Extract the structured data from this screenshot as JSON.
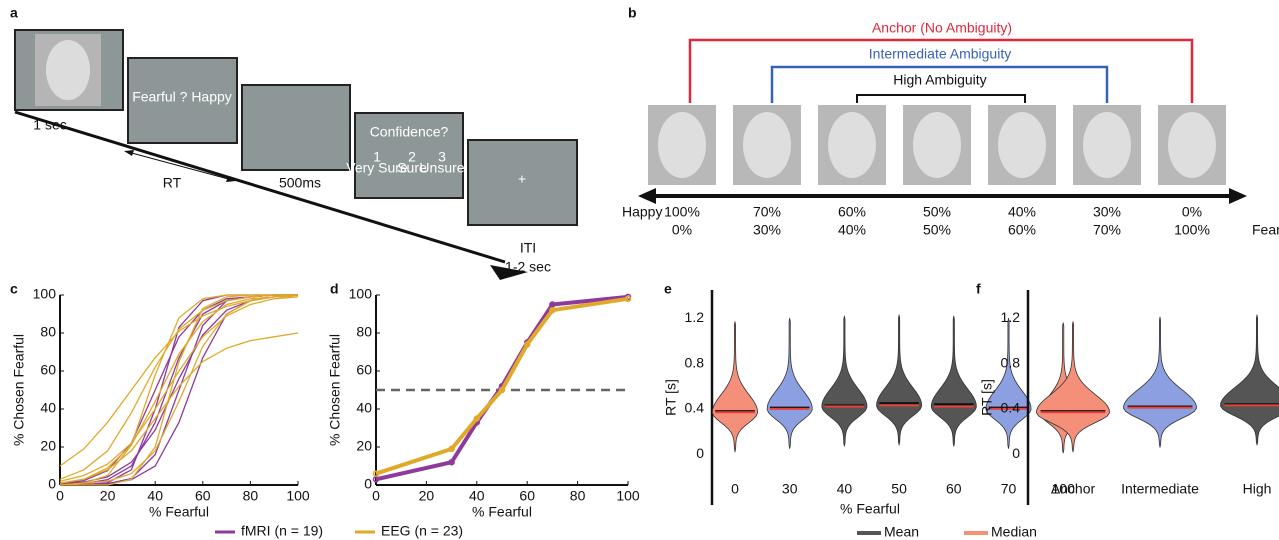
{
  "panel_labels": [
    "a",
    "b",
    "c",
    "d",
    "e",
    "f"
  ],
  "trial": {
    "first_time": "1 sec",
    "choice": "Fearful ? Happy",
    "rt": "RT",
    "delay": "500ms",
    "confidence": "Confidence?",
    "options": [
      {
        "num": "1",
        "label": "Very Sure"
      },
      {
        "num": "2",
        "label": "Sure"
      },
      {
        "num": "3",
        "label": "Unsure"
      }
    ],
    "fixation": "+",
    "iti": "ITI",
    "iti_time": "1-2 sec"
  },
  "morph": {
    "brackets": [
      "Anchor (No Ambiguity)",
      "Intermediate Ambiguity",
      "High Ambiguity"
    ],
    "left": "Happy",
    "right": "Fearful",
    "happy_pct": [
      "100%",
      "70%",
      "60%",
      "50%",
      "40%",
      "30%",
      "0%"
    ],
    "fearful_pct": [
      "0%",
      "30%",
      "40%",
      "50%",
      "60%",
      "70%",
      "100%"
    ]
  },
  "chart_data": [
    {
      "type": "curves",
      "ylabel": "% Chosen Fearful",
      "xlabel": "% Fearful",
      "x": [
        0,
        10,
        20,
        30,
        40,
        50,
        60,
        70,
        80,
        90,
        100
      ],
      "xlim": [
        0,
        100
      ],
      "ylim": [
        0,
        100
      ],
      "xticks": [
        0,
        20,
        40,
        60,
        80,
        100
      ],
      "yticks": [
        0,
        20,
        40,
        60,
        80,
        100
      ],
      "series": [
        {
          "name": "fMRI (n = 19)",
          "color": "#8e3a9c",
          "curves": [
            [
              0.2,
              0.7,
              2.8,
              10,
              33,
              67,
              90,
              97,
              99,
              100,
              100
            ],
            [
              0,
              0.1,
              0.7,
              3.4,
              16,
              50,
              84,
              97,
              99,
              100,
              100
            ],
            [
              0.7,
              2.3,
              7.6,
              22,
              50,
              78,
              92,
              98,
              99,
              100,
              100
            ],
            [
              0,
              0.2,
              0.7,
              2.8,
              10,
              33,
              67,
              90,
              97,
              99,
              100
            ],
            [
              0.5,
              1.5,
              4.3,
              12,
              29,
              56,
              79,
              92,
              97,
              99,
              100
            ],
            [
              0,
              0.2,
              1.2,
              8,
              40,
              83,
              97,
              100,
              100,
              100,
              100
            ]
          ]
        },
        {
          "name": "EEG (n = 23)",
          "color": "#e0a92a",
          "curves": [
            [
              3,
              8,
              18,
              38,
              62,
              82,
              92,
              97,
              99,
              100,
              100
            ],
            [
              2,
              5,
              11,
              22,
              40,
              60,
              78,
              89,
              95,
              98,
              99
            ],
            [
              0,
              1,
              5,
              21,
              58,
              88,
              98,
              100,
              100,
              100,
              100
            ],
            [
              0,
              1,
              2,
              6,
              18,
              44,
              73,
              90,
              97,
              99,
              100
            ],
            [
              10,
              19,
              33,
              50,
              67,
              81,
              89,
              94,
              97,
              99,
              99
            ],
            [
              1,
              3,
              8,
              18,
              35,
              52,
              65,
              72,
              76,
              78,
              80
            ],
            [
              0,
              0,
              0,
              3,
              20,
              65,
              93,
              99,
              100,
              100,
              100
            ],
            [
              1,
              3,
              9,
              21,
              44,
              69,
              86,
              95,
              98,
              99,
              100
            ]
          ]
        }
      ]
    },
    {
      "type": "line",
      "ylabel": "% Chosen Fearful",
      "xlabel": "% Fearful",
      "x": [
        0,
        30,
        40,
        50,
        60,
        70,
        100
      ],
      "xlim": [
        0,
        100
      ],
      "ylim": [
        0,
        100
      ],
      "xticks": [
        0,
        20,
        40,
        60,
        80,
        100
      ],
      "yticks": [
        0,
        20,
        40,
        60,
        80,
        100
      ],
      "reference_line": 50,
      "series": [
        {
          "name": "fMRI (n = 19)",
          "color": "#8e3a9c",
          "values": [
            3,
            12,
            33,
            52,
            75,
            95,
            99
          ]
        },
        {
          "name": "EEG (n = 23)",
          "color": "#e0a92a",
          "values": [
            6,
            19,
            35,
            50,
            74,
            92,
            98
          ]
        }
      ]
    },
    {
      "type": "violin",
      "ylabel": "RT [s]",
      "xlabel": "% Fearful",
      "categories": [
        "0",
        "30",
        "40",
        "50",
        "60",
        "70",
        "100"
      ],
      "colors": [
        "#f4907a",
        "#8c9fe0",
        "#555555",
        "#555555",
        "#555555",
        "#8c9fe0",
        "#f4907a"
      ],
      "mean": [
        0.38,
        0.41,
        0.43,
        0.45,
        0.44,
        0.41,
        0.37
      ],
      "median": [
        0.37,
        0.4,
        0.42,
        0.43,
        0.42,
        0.4,
        0.36
      ],
      "ylim": [
        -0.45,
        1.45
      ],
      "yticks": [
        0,
        0.4,
        0.8,
        1.2
      ],
      "legend": [
        {
          "name": "Mean",
          "color": "#555555"
        },
        {
          "name": "Median",
          "color": "#f4907a"
        }
      ]
    },
    {
      "type": "violin",
      "ylabel": "RT [s]",
      "categories": [
        "Anchor",
        "Intermediate",
        "High"
      ],
      "colors": [
        "#f4907a",
        "#8c9fe0",
        "#555555"
      ],
      "mean": [
        0.38,
        0.42,
        0.44
      ],
      "median": [
        0.37,
        0.41,
        0.43
      ],
      "ylim": [
        -0.45,
        1.45
      ],
      "yticks": [
        0,
        0.4,
        0.8,
        1.2
      ]
    }
  ]
}
